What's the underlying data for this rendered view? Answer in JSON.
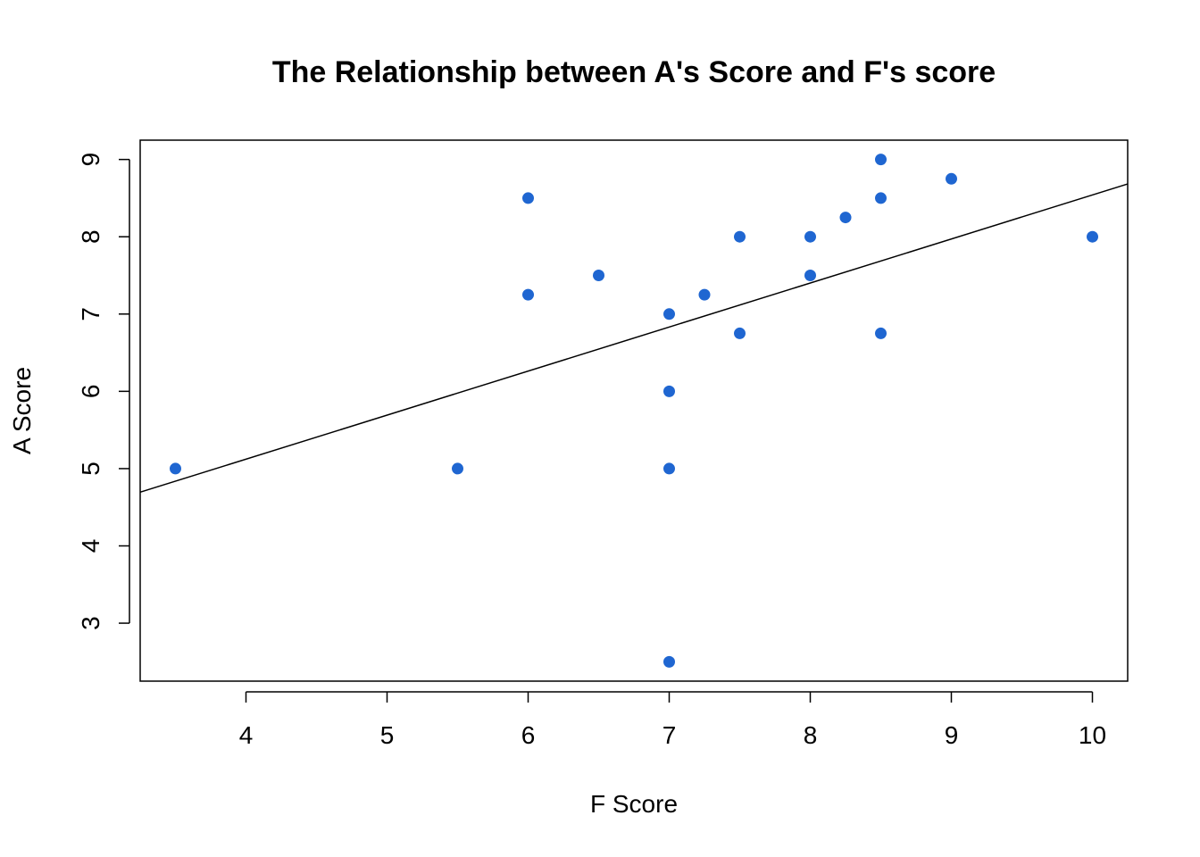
{
  "chart_data": {
    "type": "scatter",
    "title": "The Relationship between A's Score and F's score",
    "xlabel": "F Score",
    "ylabel": "A Score",
    "xlim": [
      3.25,
      10.25
    ],
    "ylim": [
      2.25,
      9.25
    ],
    "x_ticks": [
      4,
      5,
      6,
      7,
      8,
      9,
      10
    ],
    "y_ticks": [
      3,
      4,
      5,
      6,
      7,
      8,
      9
    ],
    "x_tick_labels": [
      "4",
      "5",
      "6",
      "7",
      "8",
      "9",
      "10"
    ],
    "y_tick_labels": [
      "3",
      "4",
      "5",
      "6",
      "7",
      "8",
      "9"
    ],
    "grid": false,
    "legend": "none",
    "point_color": "#1f66d1",
    "line_color": "#000000",
    "points": [
      {
        "x": 3.5,
        "y": 5
      },
      {
        "x": 5.5,
        "y": 5
      },
      {
        "x": 6,
        "y": 8.5
      },
      {
        "x": 6,
        "y": 7.25
      },
      {
        "x": 6.5,
        "y": 7.5
      },
      {
        "x": 7,
        "y": 7
      },
      {
        "x": 7,
        "y": 6
      },
      {
        "x": 7,
        "y": 5
      },
      {
        "x": 7,
        "y": 2.5
      },
      {
        "x": 7.25,
        "y": 7.25
      },
      {
        "x": 7.5,
        "y": 8
      },
      {
        "x": 7.5,
        "y": 6.75
      },
      {
        "x": 8,
        "y": 8
      },
      {
        "x": 8,
        "y": 7.5
      },
      {
        "x": 8.25,
        "y": 8.25
      },
      {
        "x": 8.5,
        "y": 9
      },
      {
        "x": 8.5,
        "y": 8.5
      },
      {
        "x": 8.5,
        "y": 6.75
      },
      {
        "x": 9,
        "y": 8.75
      },
      {
        "x": 10,
        "y": 8
      }
    ],
    "regression_line": {
      "intercept": 2.843,
      "slope": 0.5698
    }
  }
}
